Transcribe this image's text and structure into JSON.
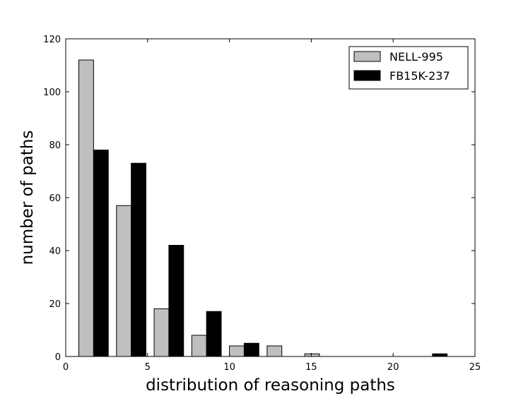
{
  "chart_data": {
    "type": "bar",
    "title": "",
    "xlabel": "distribution of reasoning paths",
    "ylabel": "number of paths",
    "xlim": [
      0,
      25
    ],
    "ylim": [
      0,
      120
    ],
    "xticks": [
      0,
      5,
      10,
      15,
      20,
      25
    ],
    "yticks": [
      0,
      20,
      40,
      60,
      80,
      100,
      120
    ],
    "grid": false,
    "legend_position": "top-right",
    "bin_width": 2.3,
    "series": [
      {
        "name": "NELL-995",
        "color": "#bfbfbf",
        "x": [
          1.25,
          3.55,
          5.85,
          8.15,
          10.45,
          12.75,
          15.05,
          17.35,
          19.65,
          21.95
        ],
        "values": [
          112,
          57,
          18,
          8,
          4,
          4,
          1,
          0,
          0,
          0
        ]
      },
      {
        "name": "FB15K-237",
        "color": "#000000",
        "x": [
          2.15,
          4.45,
          6.75,
          9.05,
          11.35,
          13.65,
          15.95,
          18.25,
          20.55,
          22.85
        ],
        "values": [
          78,
          73,
          42,
          17,
          5,
          0,
          0,
          0,
          0,
          1
        ]
      }
    ]
  }
}
